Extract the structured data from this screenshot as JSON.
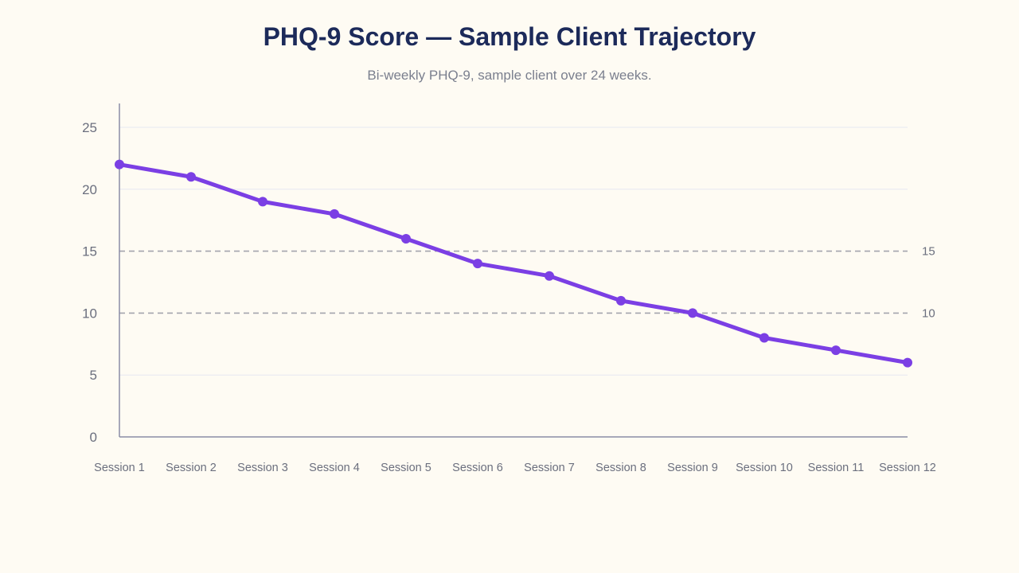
{
  "chart_data": {
    "type": "line",
    "title": "PHQ-9 Score — Sample Client Trajectory",
    "subtitle": "Bi-weekly PHQ-9, sample client over 24 weeks.",
    "xlabel": "",
    "ylabel": "",
    "categories": [
      "Session 1",
      "Session 2",
      "Session 3",
      "Session 4",
      "Session 5",
      "Session 6",
      "Session 7",
      "Session 8",
      "Session 9",
      "Session 10",
      "Session 11",
      "Session 12"
    ],
    "series": [
      {
        "values": [
          22,
          21,
          19,
          18,
          16,
          14,
          13,
          11,
          10,
          8,
          7,
          6
        ],
        "color": "#7b3fe4"
      }
    ],
    "ylim": [
      0,
      25
    ],
    "yticks": [
      "0",
      "5",
      "10",
      "15",
      "20",
      "25"
    ],
    "grid": true,
    "reference_lines": [
      {
        "value": 15,
        "label": "15",
        "style": "dashed",
        "color": "#a3a4ad"
      },
      {
        "value": 10,
        "label": "10",
        "style": "dashed",
        "color": "#a3a4ad"
      }
    ],
    "colors": {
      "gridline": "#e6e8f2",
      "axis": "#8a8ca6",
      "background": "#fefbf3"
    }
  }
}
